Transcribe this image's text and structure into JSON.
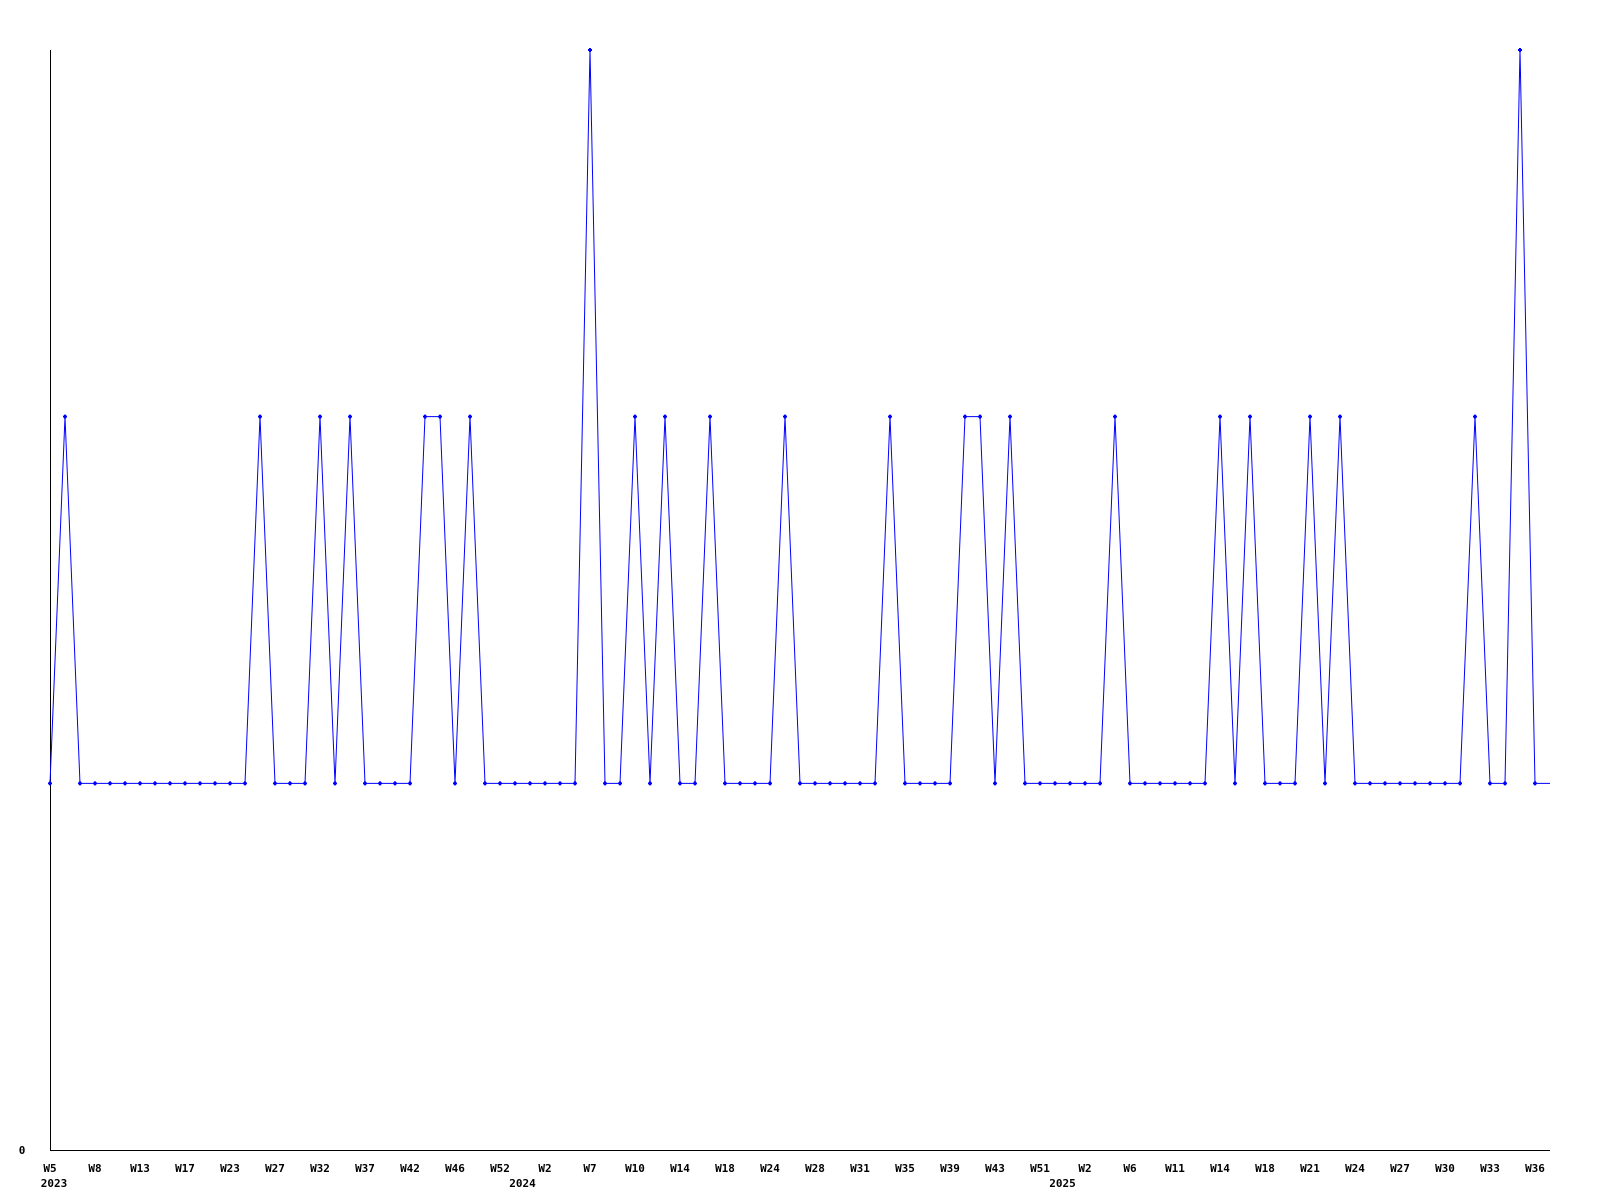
{
  "chart_data": {
    "type": "line",
    "title": "",
    "xlabel": "",
    "ylabel": "",
    "ylim": [
      0,
      3
    ],
    "y_tick_labels": [
      "0"
    ],
    "grid": false,
    "legend": "none",
    "colors": {
      "series": "#0000ff",
      "axis": "#000000"
    },
    "x_ticks": [
      {
        "label": "W5",
        "year": "2023"
      },
      {
        "label": "W8"
      },
      {
        "label": "W13"
      },
      {
        "label": "W17"
      },
      {
        "label": "W23"
      },
      {
        "label": "W27"
      },
      {
        "label": "W32"
      },
      {
        "label": "W37"
      },
      {
        "label": "W42"
      },
      {
        "label": "W46"
      },
      {
        "label": "W52"
      },
      {
        "label": "W2",
        "year": "2024"
      },
      {
        "label": "W7"
      },
      {
        "label": "W10"
      },
      {
        "label": "W14"
      },
      {
        "label": "W18"
      },
      {
        "label": "W24"
      },
      {
        "label": "W28"
      },
      {
        "label": "W31"
      },
      {
        "label": "W35"
      },
      {
        "label": "W39"
      },
      {
        "label": "W43"
      },
      {
        "label": "W51"
      },
      {
        "label": "W2",
        "year": "2025"
      },
      {
        "label": "W6"
      },
      {
        "label": "W11"
      },
      {
        "label": "W14"
      },
      {
        "label": "W18"
      },
      {
        "label": "W21"
      },
      {
        "label": "W24"
      },
      {
        "label": "W27"
      },
      {
        "label": "W30"
      },
      {
        "label": "W33"
      },
      {
        "label": "W36"
      }
    ],
    "series": [
      {
        "values": [
          1,
          2,
          1,
          1,
          1,
          1,
          1,
          1,
          1,
          1,
          1,
          1,
          1,
          1,
          2,
          1,
          1,
          1,
          2,
          1,
          2,
          1,
          1,
          1,
          1,
          2,
          2,
          1,
          2,
          1,
          1,
          1,
          1,
          1,
          1,
          1,
          3,
          1,
          1,
          2,
          1,
          2,
          1,
          1,
          2,
          1,
          1,
          1,
          1,
          2,
          1,
          1,
          1,
          1,
          1,
          1,
          2,
          1,
          1,
          1,
          1,
          2,
          2,
          1,
          2,
          1,
          1,
          1,
          1,
          1,
          1,
          2,
          1,
          1,
          1,
          1,
          1,
          1,
          2,
          1,
          2,
          1,
          1,
          1,
          2,
          1,
          2,
          1,
          1,
          1,
          1,
          1,
          1,
          1,
          1,
          2,
          1,
          1,
          3,
          1
        ]
      }
    ]
  }
}
